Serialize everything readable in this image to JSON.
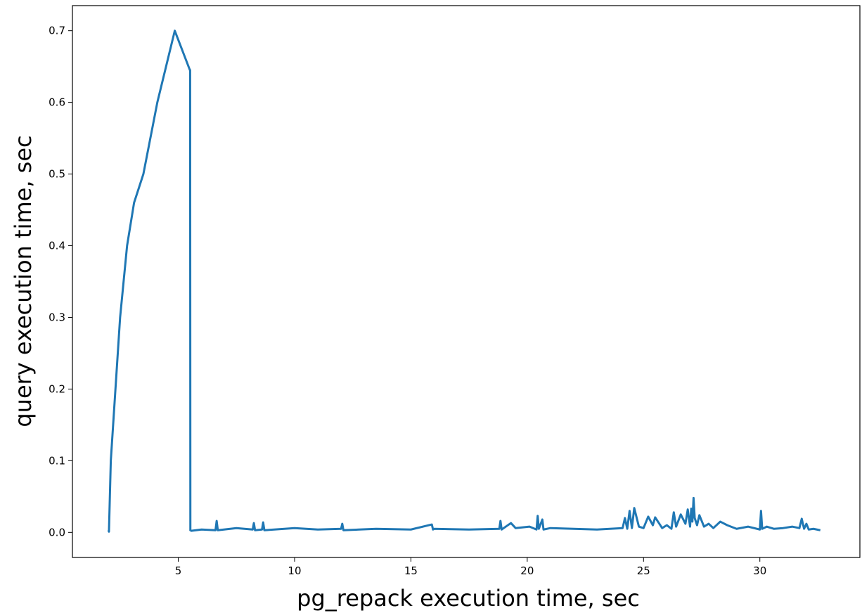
{
  "chart_data": {
    "type": "line",
    "title": "",
    "xlabel": "pg_repack execution time, sec",
    "ylabel": "query execution time, sec",
    "xlim": [
      0.45,
      34.3
    ],
    "ylim": [
      -0.035,
      0.735
    ],
    "xticks": [
      5,
      10,
      15,
      20,
      25,
      30
    ],
    "yticks": [
      0.0,
      0.1,
      0.2,
      0.3,
      0.4,
      0.5,
      0.6,
      0.7
    ],
    "xtick_labels": [
      "5",
      "10",
      "15",
      "20",
      "25",
      "30"
    ],
    "ytick_labels": [
      "0.0",
      "0.1",
      "0.2",
      "0.3",
      "0.4",
      "0.5",
      "0.6",
      "0.7"
    ],
    "grid": false,
    "legend": "none",
    "line_color": "#1f77b4",
    "series": [
      {
        "x": [
          2.0,
          2.02,
          2.1,
          2.2,
          2.3,
          2.5,
          2.8,
          3.1,
          3.5,
          4.1,
          4.85,
          5.5,
          5.51,
          5.52
        ],
        "y": [
          0.003,
          0.001,
          0.1,
          0.15,
          0.2,
          0.3,
          0.4,
          0.46,
          0.5,
          0.6,
          0.7,
          0.645,
          0.645,
          0.002
        ]
      },
      {
        "x": [
          5.52,
          6.0,
          6.6,
          6.65,
          6.7,
          7.5,
          8.2,
          8.25,
          8.3,
          8.6,
          8.65,
          8.7,
          10.0,
          11.0,
          12.0,
          12.05,
          12.1,
          13.5,
          15.0,
          15.9,
          15.95,
          16.0,
          17.5,
          18.8,
          18.85,
          18.9,
          19.3,
          19.5,
          20.1,
          20.4,
          20.45,
          20.5,
          20.65,
          20.7,
          21.0,
          22.0,
          23.0,
          24.1,
          24.2,
          24.3,
          24.4,
          24.5,
          24.6,
          24.8,
          25.0,
          25.2,
          25.4,
          25.5,
          25.8,
          26.0,
          26.2,
          26.3,
          26.4,
          26.6,
          26.8,
          26.9,
          27.0,
          27.05,
          27.1,
          27.15,
          27.2,
          27.3,
          27.4,
          27.6,
          27.8,
          28.0,
          28.3,
          28.6,
          29.0,
          29.5,
          30.0,
          30.05,
          30.1,
          30.3,
          30.6,
          31.0,
          31.4,
          31.7,
          31.8,
          31.9,
          32.0,
          32.1,
          32.3,
          32.6
        ],
        "y": [
          0.002,
          0.004,
          0.003,
          0.016,
          0.003,
          0.006,
          0.004,
          0.013,
          0.003,
          0.004,
          0.014,
          0.003,
          0.006,
          0.004,
          0.005,
          0.012,
          0.003,
          0.005,
          0.004,
          0.011,
          0.004,
          0.005,
          0.004,
          0.005,
          0.016,
          0.004,
          0.013,
          0.006,
          0.008,
          0.004,
          0.023,
          0.005,
          0.018,
          0.004,
          0.006,
          0.005,
          0.004,
          0.006,
          0.02,
          0.005,
          0.03,
          0.006,
          0.034,
          0.008,
          0.006,
          0.022,
          0.01,
          0.021,
          0.006,
          0.01,
          0.005,
          0.028,
          0.008,
          0.025,
          0.012,
          0.032,
          0.008,
          0.033,
          0.015,
          0.048,
          0.02,
          0.01,
          0.024,
          0.008,
          0.012,
          0.006,
          0.015,
          0.01,
          0.005,
          0.008,
          0.004,
          0.03,
          0.005,
          0.008,
          0.005,
          0.006,
          0.008,
          0.006,
          0.019,
          0.005,
          0.012,
          0.004,
          0.005,
          0.003
        ]
      }
    ]
  }
}
